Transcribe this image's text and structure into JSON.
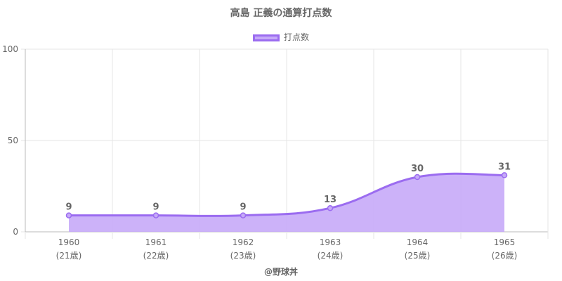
{
  "chart_data": {
    "type": "area",
    "title": "高島 正義の通算打点数",
    "categories": [
      "1960",
      "1961",
      "1962",
      "1963",
      "1964",
      "1965"
    ],
    "sublabels": [
      "(21歳)",
      "(22歳)",
      "(23歳)",
      "(24歳)",
      "(25歳)",
      "(26歳)"
    ],
    "series": [
      {
        "name": "打点数",
        "values": [
          9,
          9,
          9,
          13,
          30,
          31
        ]
      }
    ],
    "ylim": [
      0,
      100
    ],
    "yticks": [
      0,
      50,
      100
    ],
    "grid": true,
    "legend_position": "top",
    "data_labels": true,
    "colors": {
      "line": "#9b6cf0",
      "fill": "#c6aaf8",
      "text": "#666666",
      "grid": "#e6e6e6",
      "axis": "#bbbbbb"
    }
  },
  "watermark": "@野球丼"
}
